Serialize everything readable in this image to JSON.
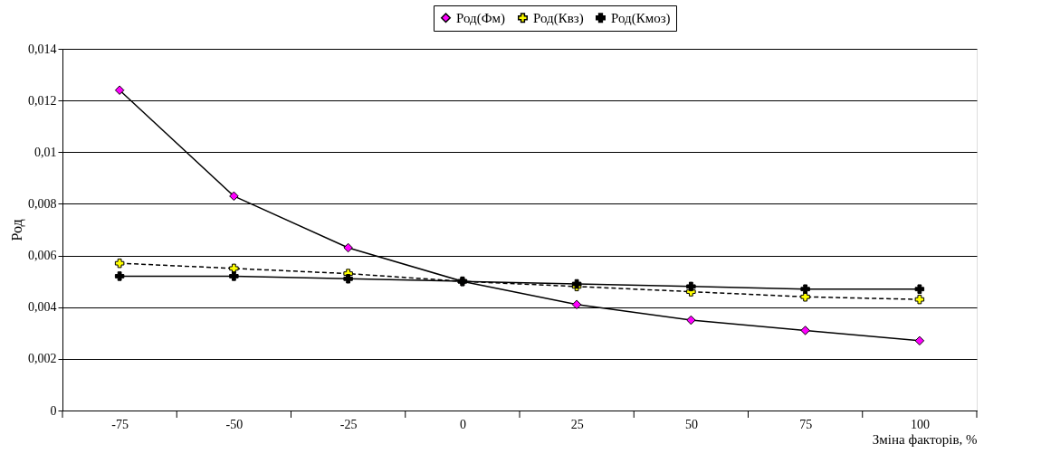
{
  "chart_data": {
    "type": "line",
    "xlabel": "Зміна факторів, %",
    "ylabel": "Род",
    "categories": [
      "-75",
      "-50",
      "-25",
      "0",
      "25",
      "50",
      "75",
      "100"
    ],
    "series": [
      {
        "name": "Род(Фм)",
        "color": "#ff00ff",
        "marker": "diamond",
        "line_style": "solid",
        "values": [
          0.0124,
          0.0083,
          0.0063,
          0.005,
          0.0041,
          0.0035,
          0.0031,
          0.0027
        ]
      },
      {
        "name": "Род(Квз)",
        "color": "#ffff00",
        "marker": "cross",
        "line_style": "dashed",
        "values": [
          0.0057,
          0.0055,
          0.0053,
          0.005,
          0.0048,
          0.0046,
          0.0044,
          0.0043
        ]
      },
      {
        "name": "Род(Кмоз)",
        "color": "#000000",
        "marker": "cross",
        "line_style": "solid",
        "values": [
          0.0052,
          0.0052,
          0.0051,
          0.005,
          0.0049,
          0.0048,
          0.0047,
          0.0047
        ]
      }
    ],
    "ylim": [
      0,
      0.014
    ],
    "yticks": [
      {
        "value": 0,
        "label": "0"
      },
      {
        "value": 0.002,
        "label": "0,002"
      },
      {
        "value": 0.004,
        "label": "0,004"
      },
      {
        "value": 0.006,
        "label": "0,006"
      },
      {
        "value": 0.008,
        "label": "0,008"
      },
      {
        "value": 0.01,
        "label": "0,01"
      },
      {
        "value": 0.012,
        "label": "0,012"
      },
      {
        "value": 0.014,
        "label": "0,014"
      }
    ],
    "grid": "y",
    "legend": "top right"
  }
}
